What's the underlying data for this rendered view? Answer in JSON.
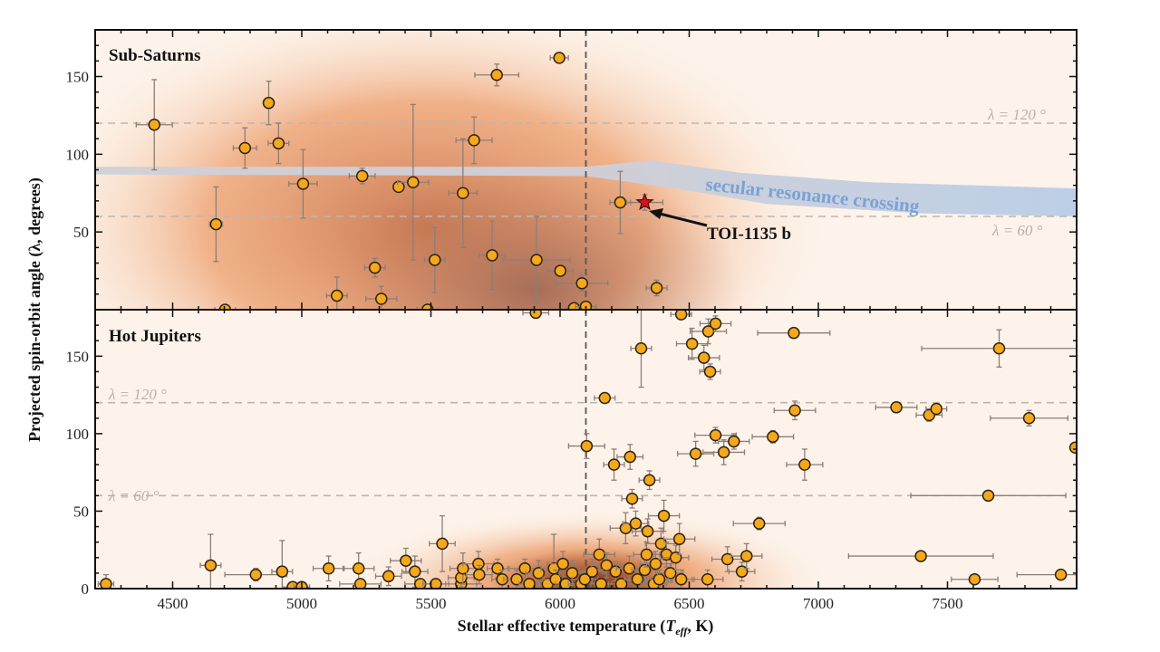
{
  "chart_data": [
    {
      "type": "scatter",
      "title": "Sub-Saturns",
      "xlabel": "",
      "ylabel": "Projected spin-orbit angle (λ, degrees)",
      "xlim": [
        4200,
        8000
      ],
      "ylim": [
        0,
        180
      ],
      "yticks": [
        "50",
        "100",
        "150"
      ],
      "reference_lines": [
        {
          "value": 120,
          "label": "λ = 120 °"
        },
        {
          "value": 60,
          "label": "λ = 60 °"
        }
      ],
      "vertical_line": 6100,
      "band": {
        "label": "secular resonance crossing",
        "upper": [
          [
            4200,
            92
          ],
          [
            6100,
            92
          ],
          [
            6350,
            96
          ],
          [
            6700,
            88
          ],
          [
            7200,
            82
          ],
          [
            8000,
            78
          ]
        ],
        "lower": [
          [
            8000,
            60
          ],
          [
            7400,
            62
          ],
          [
            6800,
            68
          ],
          [
            6450,
            78
          ],
          [
            6100,
            86
          ],
          [
            4200,
            87
          ]
        ],
        "colors": [
          "#cfd0d8",
          "#b9cde6"
        ]
      },
      "density_shading": true,
      "points": [
        [
          4429,
          119,
          70,
          29
        ],
        [
          4668,
          55,
          25,
          24
        ],
        [
          4780,
          104,
          45,
          13
        ],
        [
          4872,
          133,
          20,
          14
        ],
        [
          4910,
          107,
          40,
          13
        ],
        [
          5005,
          81,
          55,
          22
        ],
        [
          5234,
          86,
          50,
          5
        ],
        [
          5375,
          79,
          0,
          0
        ],
        [
          5431,
          82,
          60,
          50
        ],
        [
          5283,
          27,
          40,
          6
        ],
        [
          5136,
          9,
          40,
          12
        ],
        [
          5308,
          7,
          60,
          8
        ],
        [
          5515,
          32,
          40,
          21
        ],
        [
          5624,
          75,
          55,
          35
        ],
        [
          5667,
          109,
          70,
          15
        ],
        [
          5755,
          151,
          85,
          7
        ],
        [
          5737,
          35,
          50,
          22
        ],
        [
          5909,
          32,
          130,
          28
        ],
        [
          6001,
          25,
          50,
          0
        ],
        [
          6085,
          17,
          100,
          5
        ],
        [
          5997,
          162,
          35,
          3
        ],
        [
          6233,
          69,
          40,
          20
        ],
        [
          6374,
          14,
          40,
          5
        ],
        [
          4703,
          0,
          40,
          0
        ],
        [
          5487,
          0,
          40,
          0
        ],
        [
          6054,
          1,
          30,
          0
        ],
        [
          6100,
          2,
          40,
          0
        ]
      ],
      "highlight": {
        "label": "TOI-1135 b",
        "T": 6328,
        "lambda": 69,
        "dT": 70,
        "dlambda": 5,
        "color": "#d8141e"
      }
    },
    {
      "type": "scatter",
      "title": "Hot Jupiters",
      "xlabel": "Stellar effective temperature (T_eff, K)",
      "xlabel_parts": {
        "before": "Stellar effective temperature (",
        "T": "T",
        "sub": "eff",
        "after": ", K)"
      },
      "ylabel": "Projected spin-orbit angle (λ, degrees)",
      "xlim": [
        4200,
        8000
      ],
      "ylim": [
        0,
        180
      ],
      "xticks": [
        "4500",
        "5000",
        "5500",
        "6000",
        "6500",
        "7000",
        "7500"
      ],
      "yticks": [
        "0",
        "50",
        "100",
        "150"
      ],
      "reference_lines": [
        {
          "value": 120,
          "label": "λ = 120 °"
        },
        {
          "value": 60,
          "label": "λ = 60 °"
        }
      ],
      "vertical_line": 6100,
      "density_shading": true,
      "points": [
        [
          4242,
          3,
          30,
          6
        ],
        [
          4647,
          15,
          40,
          20
        ],
        [
          4822,
          9,
          120,
          4
        ],
        [
          4924,
          11,
          40,
          20
        ],
        [
          4965,
          1,
          40,
          0
        ],
        [
          5000,
          1,
          30,
          0
        ],
        [
          5104,
          13,
          60,
          8
        ],
        [
          5220,
          13,
          60,
          10
        ],
        [
          5227,
          3,
          80,
          0
        ],
        [
          5336,
          8,
          50,
          6
        ],
        [
          5403,
          18,
          60,
          8
        ],
        [
          5438,
          11,
          50,
          10
        ],
        [
          5544,
          29,
          50,
          18
        ],
        [
          5459,
          3,
          60,
          0
        ],
        [
          5519,
          3,
          50,
          0
        ],
        [
          5617,
          3,
          60,
          0
        ],
        [
          5617,
          7,
          50,
          6
        ],
        [
          5624,
          13,
          50,
          10
        ],
        [
          5684,
          16,
          60,
          8
        ],
        [
          5687,
          9,
          50,
          6
        ],
        [
          5758,
          13,
          40,
          6
        ],
        [
          5776,
          6,
          40,
          6
        ],
        [
          5832,
          6,
          50,
          6
        ],
        [
          5864,
          13,
          60,
          6
        ],
        [
          5881,
          3,
          40,
          0
        ],
        [
          5917,
          10,
          50,
          8
        ],
        [
          5952,
          3,
          40,
          0
        ],
        [
          5976,
          13,
          50,
          22
        ],
        [
          5983,
          6,
          50,
          6
        ],
        [
          6011,
          16,
          60,
          8
        ],
        [
          6022,
          3,
          40,
          0
        ],
        [
          6047,
          10,
          50,
          8
        ],
        [
          6082,
          3,
          50,
          0
        ],
        [
          6103,
          92,
          70,
          8
        ],
        [
          6096,
          6,
          50,
          6
        ],
        [
          6124,
          11,
          50,
          8
        ],
        [
          6152,
          22,
          60,
          10
        ],
        [
          6159,
          3,
          40,
          0
        ],
        [
          6173,
          123,
          40,
          3
        ],
        [
          6180,
          15,
          60,
          8
        ],
        [
          6209,
          80,
          40,
          10
        ],
        [
          6215,
          11,
          50,
          6
        ],
        [
          6237,
          3,
          50,
          0
        ],
        [
          6254,
          39,
          60,
          10
        ],
        [
          6268,
          13,
          50,
          8
        ],
        [
          6271,
          85,
          50,
          8
        ],
        [
          6279,
          58,
          40,
          6
        ],
        [
          6293,
          42,
          50,
          8
        ],
        [
          6300,
          6,
          50,
          6
        ],
        [
          6314,
          155,
          40,
          25
        ],
        [
          6328,
          12,
          50,
          8
        ],
        [
          6335,
          22,
          50,
          8
        ],
        [
          6339,
          37,
          60,
          8
        ],
        [
          6346,
          70,
          40,
          6
        ],
        [
          6363,
          3,
          50,
          0
        ],
        [
          6370,
          16,
          60,
          8
        ],
        [
          6384,
          6,
          50,
          6
        ],
        [
          6391,
          29,
          60,
          10
        ],
        [
          6402,
          47,
          60,
          10
        ],
        [
          6412,
          22,
          50,
          8
        ],
        [
          6427,
          10,
          50,
          6
        ],
        [
          6448,
          20,
          50,
          8
        ],
        [
          6462,
          32,
          60,
          10
        ],
        [
          6469,
          6,
          50,
          6
        ],
        [
          6469,
          177,
          40,
          3
        ],
        [
          6511,
          158,
          60,
          10
        ],
        [
          6525,
          87,
          70,
          8
        ],
        [
          6557,
          149,
          60,
          8
        ],
        [
          6574,
          166,
          70,
          8
        ],
        [
          6581,
          140,
          40,
          5
        ],
        [
          6602,
          171,
          60,
          5
        ],
        [
          6602,
          99,
          80,
          5
        ],
        [
          6634,
          88,
          80,
          8
        ],
        [
          6648,
          19,
          60,
          8
        ],
        [
          6571,
          6,
          60,
          6
        ],
        [
          6673,
          95,
          60,
          5
        ],
        [
          6704,
          11,
          50,
          6
        ],
        [
          6722,
          21,
          60,
          8
        ],
        [
          6771,
          42,
          100,
          4
        ],
        [
          6824,
          98,
          80,
          4
        ],
        [
          6905,
          165,
          140,
          3
        ],
        [
          6909,
          115,
          80,
          6
        ],
        [
          6947,
          80,
          70,
          10
        ],
        [
          7302,
          117,
          80,
          3
        ],
        [
          7429,
          112,
          50,
          4
        ],
        [
          7457,
          116,
          40,
          3
        ],
        [
          7397,
          21,
          280,
          3
        ],
        [
          7658,
          60,
          300,
          3
        ],
        [
          7700,
          155,
          300,
          12
        ],
        [
          7816,
          110,
          150,
          5
        ],
        [
          7605,
          6,
          90,
          3
        ],
        [
          7939,
          9,
          170,
          3
        ],
        [
          7995,
          91,
          0,
          0
        ],
        [
          5906,
          178,
          50,
          0
        ]
      ]
    }
  ],
  "style": {
    "point_fill": "#f5a81c",
    "point_stroke": "#2e2414",
    "errorbar": "#8c7f76",
    "refline": "#bdb6b0",
    "vline": "#555555"
  }
}
